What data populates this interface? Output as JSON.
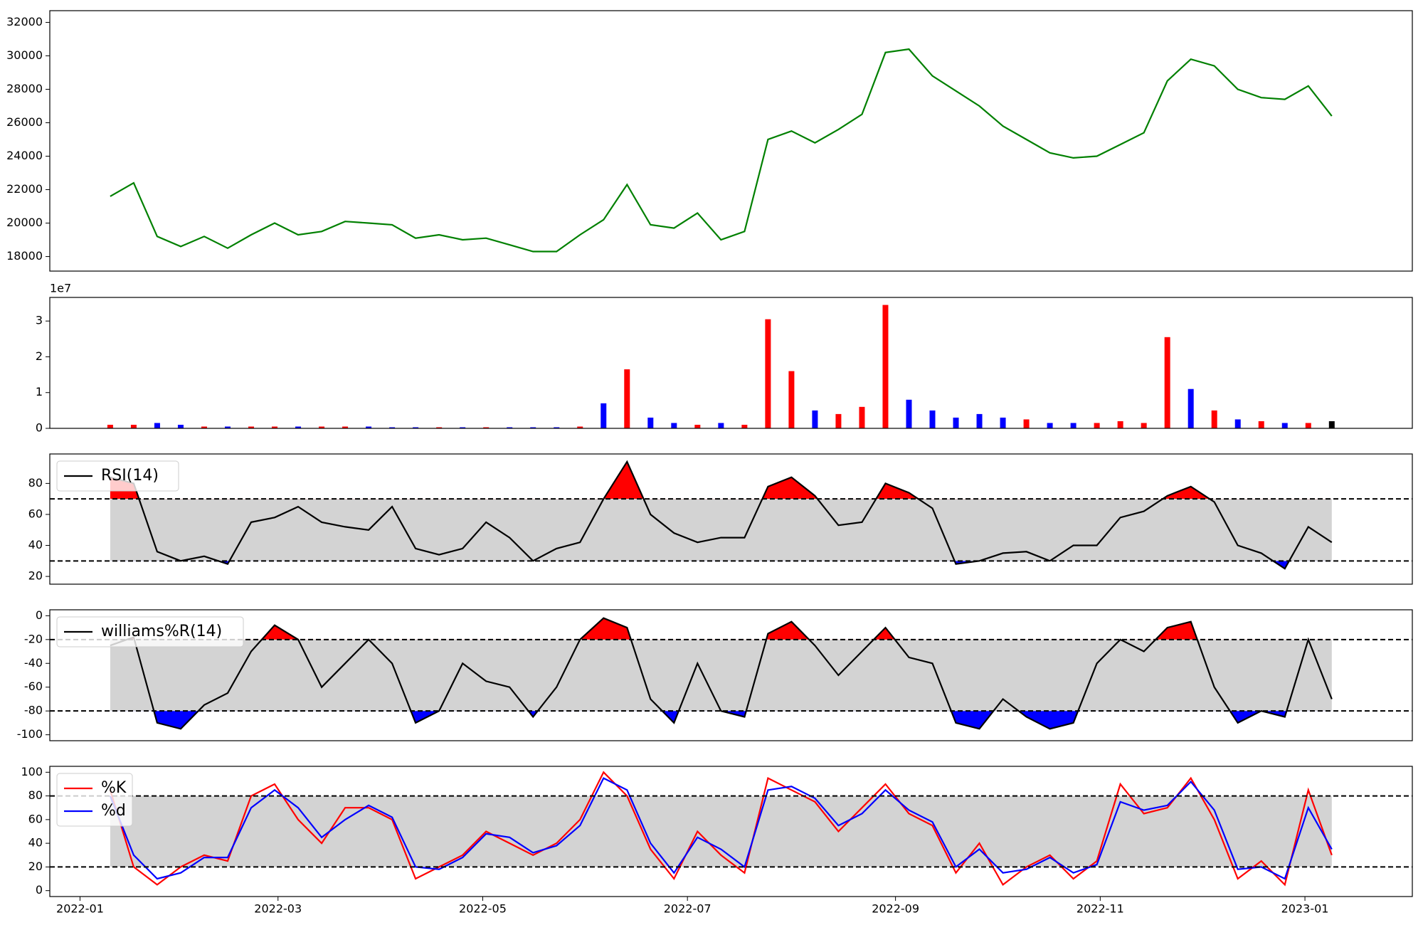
{
  "chart_data": [
    {
      "type": "line",
      "xlim": [
        "2021-12-23",
        "2023-02-02"
      ],
      "x": [
        "2022-01-10",
        "2022-01-17",
        "2022-01-24",
        "2022-01-31",
        "2022-02-07",
        "2022-02-14",
        "2022-02-21",
        "2022-02-28",
        "2022-03-07",
        "2022-03-14",
        "2022-03-21",
        "2022-03-28",
        "2022-04-04",
        "2022-04-11",
        "2022-04-18",
        "2022-04-25",
        "2022-05-02",
        "2022-05-09",
        "2022-05-16",
        "2022-05-23",
        "2022-05-30",
        "2022-06-06",
        "2022-06-13",
        "2022-06-20",
        "2022-06-27",
        "2022-07-04",
        "2022-07-11",
        "2022-07-18",
        "2022-07-25",
        "2022-08-01",
        "2022-08-08",
        "2022-08-15",
        "2022-08-22",
        "2022-08-29",
        "2022-09-05",
        "2022-09-12",
        "2022-09-19",
        "2022-09-26",
        "2022-10-03",
        "2022-10-10",
        "2022-10-17",
        "2022-10-24",
        "2022-10-31",
        "2022-11-07",
        "2022-11-14",
        "2022-11-21",
        "2022-11-28",
        "2022-12-05",
        "2022-12-12",
        "2022-12-19",
        "2022-12-26",
        "2023-01-02",
        "2023-01-09"
      ],
      "values": [
        21600,
        22400,
        19200,
        18600,
        19200,
        18500,
        19300,
        20000,
        19300,
        19500,
        20100,
        20000,
        19900,
        19100,
        19300,
        19000,
        19100,
        18700,
        18300,
        18300,
        19300,
        20200,
        22300,
        19900,
        19700,
        20600,
        19000,
        19500,
        25000,
        25500,
        24800,
        25600,
        26500,
        30200,
        30400,
        28800,
        27900,
        27000,
        25800,
        25000,
        24200,
        23900,
        24000,
        24700,
        25400,
        28500,
        29800,
        29400,
        28000,
        27500,
        27400,
        28200,
        26400
      ],
      "color": "green",
      "ylim": [
        17130,
        32700
      ],
      "yticks": [
        18000,
        20000,
        22000,
        24000,
        26000,
        28000,
        30000,
        32000
      ]
    },
    {
      "type": "bar",
      "xlim": [
        "2021-12-23",
        "2023-02-02"
      ],
      "x": [
        "2022-01-10",
        "2022-01-17",
        "2022-01-24",
        "2022-01-31",
        "2022-02-07",
        "2022-02-14",
        "2022-02-21",
        "2022-02-28",
        "2022-03-07",
        "2022-03-14",
        "2022-03-21",
        "2022-03-28",
        "2022-04-04",
        "2022-04-11",
        "2022-04-18",
        "2022-04-25",
        "2022-05-02",
        "2022-05-09",
        "2022-05-16",
        "2022-05-23",
        "2022-05-30",
        "2022-06-06",
        "2022-06-13",
        "2022-06-20",
        "2022-06-27",
        "2022-07-04",
        "2022-07-11",
        "2022-07-18",
        "2022-07-25",
        "2022-08-01",
        "2022-08-08",
        "2022-08-15",
        "2022-08-22",
        "2022-08-29",
        "2022-09-05",
        "2022-09-12",
        "2022-09-19",
        "2022-09-26",
        "2022-10-03",
        "2022-10-10",
        "2022-10-17",
        "2022-10-24",
        "2022-10-31",
        "2022-11-07",
        "2022-11-14",
        "2022-11-21",
        "2022-11-28",
        "2022-12-05",
        "2022-12-12",
        "2022-12-19",
        "2022-12-26",
        "2023-01-02",
        "2023-01-09"
      ],
      "values": [
        0.1,
        0.1,
        0.15,
        0.1,
        0.05,
        0.05,
        0.05,
        0.05,
        0.05,
        0.05,
        0.05,
        0.05,
        0.03,
        0.03,
        0.03,
        0.03,
        0.03,
        0.03,
        0.03,
        0.03,
        0.05,
        0.7,
        1.65,
        0.3,
        0.15,
        0.1,
        0.15,
        0.1,
        3.05,
        1.6,
        0.5,
        0.4,
        0.6,
        3.45,
        0.8,
        0.5,
        0.3,
        0.4,
        0.3,
        0.25,
        0.15,
        0.15,
        0.15,
        0.2,
        0.15,
        2.55,
        1.1,
        0.5,
        0.25,
        0.2,
        0.15,
        0.15,
        0.2
      ],
      "colors": [
        "red",
        "red",
        "blue",
        "blue",
        "red",
        "blue",
        "red",
        "red",
        "blue",
        "red",
        "red",
        "blue",
        "blue",
        "blue",
        "red",
        "blue",
        "red",
        "blue",
        "blue",
        "blue",
        "red",
        "blue",
        "red",
        "blue",
        "blue",
        "red",
        "blue",
        "red",
        "red",
        "red",
        "blue",
        "red",
        "red",
        "red",
        "blue",
        "blue",
        "blue",
        "blue",
        "blue",
        "red",
        "blue",
        "blue",
        "red",
        "red",
        "red",
        "red",
        "blue",
        "red",
        "blue",
        "red",
        "blue",
        "red",
        "black"
      ],
      "offset_label": "1e7",
      "ylim": [
        0,
        3.66
      ],
      "yticks": [
        0,
        1,
        2,
        3
      ]
    },
    {
      "type": "line",
      "xlim": [
        "2021-12-23",
        "2023-02-02"
      ],
      "x": [
        "2022-01-10",
        "2022-01-17",
        "2022-01-24",
        "2022-01-31",
        "2022-02-07",
        "2022-02-14",
        "2022-02-21",
        "2022-02-28",
        "2022-03-07",
        "2022-03-14",
        "2022-03-21",
        "2022-03-28",
        "2022-04-04",
        "2022-04-11",
        "2022-04-18",
        "2022-04-25",
        "2022-05-02",
        "2022-05-09",
        "2022-05-16",
        "2022-05-23",
        "2022-05-30",
        "2022-06-06",
        "2022-06-13",
        "2022-06-20",
        "2022-06-27",
        "2022-07-04",
        "2022-07-11",
        "2022-07-18",
        "2022-07-25",
        "2022-08-01",
        "2022-08-08",
        "2022-08-15",
        "2022-08-22",
        "2022-08-29",
        "2022-09-05",
        "2022-09-12",
        "2022-09-19",
        "2022-09-26",
        "2022-10-03",
        "2022-10-10",
        "2022-10-17",
        "2022-10-24",
        "2022-10-31",
        "2022-11-07",
        "2022-11-14",
        "2022-11-21",
        "2022-11-28",
        "2022-12-05",
        "2022-12-12",
        "2022-12-19",
        "2022-12-26",
        "2023-01-02",
        "2023-01-09"
      ],
      "series": [
        {
          "name": "RSI(14)",
          "color": "black",
          "values": [
            84,
            80,
            36,
            30,
            33,
            28,
            55,
            58,
            65,
            55,
            52,
            50,
            65,
            38,
            34,
            38,
            55,
            45,
            30,
            38,
            42,
            70,
            94,
            60,
            48,
            42,
            45,
            45,
            78,
            84,
            72,
            53,
            55,
            80,
            74,
            64,
            28,
            30,
            35,
            36,
            30,
            40,
            40,
            58,
            62,
            72,
            78,
            68,
            40,
            35,
            25,
            52,
            42
          ]
        }
      ],
      "band": [
        30,
        70
      ],
      "band_color": "lightgray",
      "fill_above": "red",
      "fill_below": "blue",
      "legend": "upper left",
      "ylim": [
        15,
        99
      ],
      "yticks": [
        20,
        40,
        60,
        80
      ]
    },
    {
      "type": "line",
      "xlim": [
        "2021-12-23",
        "2023-02-02"
      ],
      "x": [
        "2022-01-10",
        "2022-01-17",
        "2022-01-24",
        "2022-01-31",
        "2022-02-07",
        "2022-02-14",
        "2022-02-21",
        "2022-02-28",
        "2022-03-07",
        "2022-03-14",
        "2022-03-21",
        "2022-03-28",
        "2022-04-04",
        "2022-04-11",
        "2022-04-18",
        "2022-04-25",
        "2022-05-02",
        "2022-05-09",
        "2022-05-16",
        "2022-05-23",
        "2022-05-30",
        "2022-06-06",
        "2022-06-13",
        "2022-06-20",
        "2022-06-27",
        "2022-07-04",
        "2022-07-11",
        "2022-07-18",
        "2022-07-25",
        "2022-08-01",
        "2022-08-08",
        "2022-08-15",
        "2022-08-22",
        "2022-08-29",
        "2022-09-05",
        "2022-09-12",
        "2022-09-19",
        "2022-09-26",
        "2022-10-03",
        "2022-10-10",
        "2022-10-17",
        "2022-10-24",
        "2022-10-31",
        "2022-11-07",
        "2022-11-14",
        "2022-11-21",
        "2022-11-28",
        "2022-12-05",
        "2022-12-12",
        "2022-12-19",
        "2022-12-26",
        "2023-01-02",
        "2023-01-09"
      ],
      "series": [
        {
          "name": "williams%R(14)",
          "color": "black",
          "values": [
            -25,
            -18,
            -90,
            -95,
            -75,
            -65,
            -30,
            -8,
            -20,
            -60,
            -40,
            -20,
            -40,
            -90,
            -80,
            -40,
            -55,
            -60,
            -85,
            -60,
            -20,
            -2,
            -10,
            -70,
            -90,
            -40,
            -80,
            -85,
            -15,
            -5,
            -25,
            -50,
            -30,
            -10,
            -35,
            -40,
            -90,
            -95,
            -70,
            -85,
            -95,
            -90,
            -40,
            -20,
            -30,
            -10,
            -5,
            -60,
            -90,
            -80,
            -85,
            -20,
            -70
          ]
        }
      ],
      "band": [
        -80,
        -20
      ],
      "band_color": "lightgray",
      "fill_above": "red",
      "fill_below": "blue",
      "legend": "upper left",
      "ylim": [
        -105,
        5
      ],
      "yticks": [
        -100,
        -80,
        -60,
        -40,
        -20,
        0
      ]
    },
    {
      "type": "line",
      "xlim": [
        "2021-12-23",
        "2023-02-02"
      ],
      "x": [
        "2022-01-10",
        "2022-01-17",
        "2022-01-24",
        "2022-01-31",
        "2022-02-07",
        "2022-02-14",
        "2022-02-21",
        "2022-02-28",
        "2022-03-07",
        "2022-03-14",
        "2022-03-21",
        "2022-03-28",
        "2022-04-04",
        "2022-04-11",
        "2022-04-18",
        "2022-04-25",
        "2022-05-02",
        "2022-05-09",
        "2022-05-16",
        "2022-05-23",
        "2022-05-30",
        "2022-06-06",
        "2022-06-13",
        "2022-06-20",
        "2022-06-27",
        "2022-07-04",
        "2022-07-11",
        "2022-07-18",
        "2022-07-25",
        "2022-08-01",
        "2022-08-08",
        "2022-08-15",
        "2022-08-22",
        "2022-08-29",
        "2022-09-05",
        "2022-09-12",
        "2022-09-19",
        "2022-09-26",
        "2022-10-03",
        "2022-10-10",
        "2022-10-17",
        "2022-10-24",
        "2022-10-31",
        "2022-11-07",
        "2022-11-14",
        "2022-11-21",
        "2022-11-28",
        "2022-12-05",
        "2022-12-12",
        "2022-12-19",
        "2022-12-26",
        "2023-01-02",
        "2023-01-09"
      ],
      "series": [
        {
          "name": "%K",
          "color": "red",
          "values": [
            85,
            20,
            5,
            20,
            30,
            25,
            80,
            90,
            60,
            40,
            70,
            70,
            60,
            10,
            20,
            30,
            50,
            40,
            30,
            40,
            60,
            100,
            80,
            35,
            10,
            50,
            30,
            15,
            95,
            85,
            75,
            50,
            70,
            90,
            65,
            55,
            15,
            40,
            5,
            20,
            30,
            10,
            25,
            90,
            65,
            70,
            95,
            60,
            10,
            25,
            5,
            85,
            30
          ]
        },
        {
          "name": "%d",
          "color": "blue",
          "values": [
            80,
            30,
            10,
            15,
            28,
            28,
            70,
            85,
            70,
            45,
            60,
            72,
            62,
            20,
            18,
            28,
            48,
            45,
            32,
            38,
            55,
            95,
            85,
            40,
            15,
            45,
            35,
            20,
            85,
            88,
            78,
            55,
            65,
            85,
            68,
            58,
            20,
            35,
            15,
            18,
            28,
            15,
            22,
            75,
            68,
            72,
            92,
            68,
            18,
            20,
            10,
            70,
            35
          ]
        }
      ],
      "band": [
        20,
        80
      ],
      "band_color": "lightgray",
      "legend": "upper left",
      "ylim": [
        -5,
        105
      ],
      "yticks": [
        0,
        20,
        40,
        60,
        80,
        100
      ],
      "xticks": [
        {
          "value": "2022-01-01",
          "label": "2022-01"
        },
        {
          "value": "2022-03-01",
          "label": "2022-03"
        },
        {
          "value": "2022-05-01",
          "label": "2022-05"
        },
        {
          "value": "2022-07-01",
          "label": "2022-07"
        },
        {
          "value": "2022-09-01",
          "label": "2022-09"
        },
        {
          "value": "2022-11-01",
          "label": "2022-11"
        },
        {
          "value": "2023-01-01",
          "label": "2023-01"
        }
      ]
    }
  ]
}
